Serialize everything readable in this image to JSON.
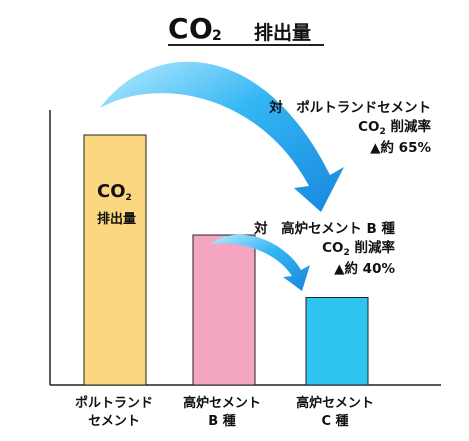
{
  "title": {
    "main": "CO",
    "subscript": "2",
    "rest": "排出量"
  },
  "chart_data": {
    "type": "bar",
    "categories": [
      {
        "line1": "ポルトランド",
        "line2": "セメント"
      },
      {
        "line1": "高炉セメント",
        "line2": "B 種"
      },
      {
        "line1": "高炉セメント",
        "line2": "C 種"
      }
    ],
    "values": [
      100,
      60,
      35
    ],
    "colors": [
      "#fbd77f",
      "#f4a6c1",
      "#2fc3f0"
    ],
    "ylim": [
      0,
      110
    ],
    "in_bar_label": {
      "line1_main": "CO",
      "line1_sub": "2",
      "line2": "排出量"
    },
    "annotations": [
      {
        "line1": "対　ポルトランドセメント",
        "line2_main": "CO",
        "line2_sub": "2",
        "line2_rest": " 削減率",
        "line3": "▲約 65%"
      },
      {
        "line1": "対　高炉セメント B 種",
        "line2_main": "CO",
        "line2_sub": "2",
        "line2_rest": " 削減率",
        "line3": "▲約 40%"
      }
    ]
  }
}
